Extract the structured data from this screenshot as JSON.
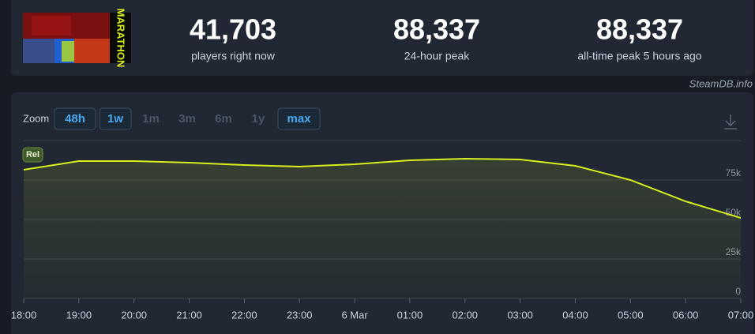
{
  "stats": [
    {
      "value": "41,703",
      "label": "players right now"
    },
    {
      "value": "88,337",
      "label": "24-hour peak"
    },
    {
      "value": "88,337",
      "label": "all-time peak 5 hours ago"
    }
  ],
  "game": {
    "cover_text": "MARATHON"
  },
  "source": "SteamDB.info",
  "zoom": {
    "label": "Zoom",
    "options": [
      "48h",
      "1w",
      "1m",
      "3m",
      "6m",
      "1y",
      "max"
    ],
    "active": [
      "48h",
      "1w",
      "max"
    ]
  },
  "chart_data": {
    "type": "line",
    "badge": "Rel",
    "categories": [
      "18:00",
      "19:00",
      "20:00",
      "21:00",
      "22:00",
      "23:00",
      "6 Mar",
      "01:00",
      "02:00",
      "03:00",
      "04:00",
      "05:00",
      "06:00",
      "07:00"
    ],
    "series": [
      {
        "name": "Players",
        "color": "#d6ef1c",
        "values": [
          81500,
          87000,
          87000,
          86000,
          84500,
          83500,
          85000,
          87500,
          88500,
          88000,
          84000,
          75000,
          61500,
          51000
        ]
      }
    ],
    "ylim": [
      0,
      100000
    ],
    "yticks": [
      0,
      {
        "value": 25000,
        "label": "25k"
      },
      {
        "value": 50000,
        "label": "50k"
      },
      {
        "value": 75000,
        "label": "75k"
      }
    ],
    "grid": true
  }
}
